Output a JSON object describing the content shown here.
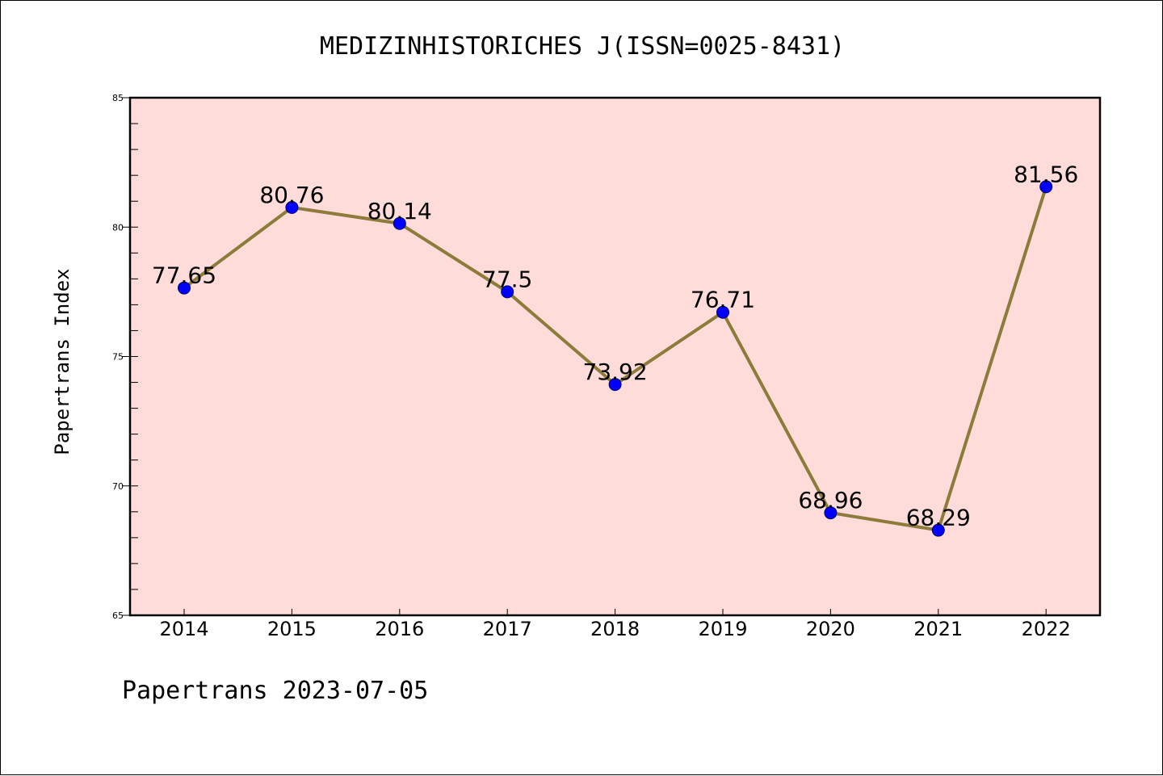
{
  "chart_data": {
    "type": "line",
    "title": "MEDIZINHISTORICHES J(ISSN=0025-8431)",
    "ylabel": "Papertrans Index",
    "xlabel": "",
    "categories": [
      "2014",
      "2015",
      "2016",
      "2017",
      "2018",
      "2019",
      "2020",
      "2021",
      "2022"
    ],
    "values": [
      77.65,
      80.76,
      80.14,
      77.5,
      73.92,
      76.71,
      68.96,
      68.29,
      81.56
    ],
    "value_labels": [
      "77.65",
      "80.76",
      "80.14",
      "77.5",
      "73.92",
      "76.71",
      "68.96",
      "68.29",
      "81.56"
    ],
    "ylim": [
      65,
      85
    ],
    "yticks": [
      65,
      70,
      75,
      80,
      85
    ],
    "ytick_labels": [
      "65",
      "70",
      "75",
      "80",
      "85"
    ],
    "grid": false,
    "footer": "Papertrans 2023-07-05",
    "colors": {
      "plot_background": "#ffdcd9",
      "line": "#8c7b3a",
      "marker": "#0000ff",
      "marker_edge": "#000066"
    }
  }
}
